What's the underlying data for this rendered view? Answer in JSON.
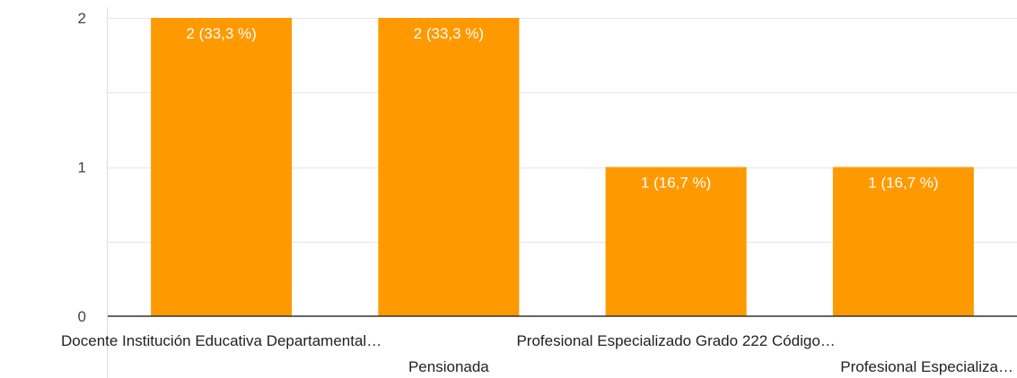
{
  "chart_data": {
    "type": "bar",
    "categories": [
      "Docente Institución Educativa Departamental…",
      "Pensionada",
      "Profesional Especializado Grado 222 Código…",
      "Profesional Especializa…"
    ],
    "values": [
      2,
      2,
      1,
      1
    ],
    "data_labels": [
      "2 (33,3 %)",
      "2 (33,3 %)",
      "1 (16,7 %)",
      "1 (16,7 %)"
    ],
    "y_ticks": [
      "0",
      "1",
      "2"
    ],
    "ylim": [
      0,
      2
    ],
    "grid": true,
    "legend": "none",
    "colors": {
      "bar": "#ff9900",
      "grid": "#e6e6e6",
      "axis": "#333333",
      "left_border": "#dddddd"
    }
  }
}
